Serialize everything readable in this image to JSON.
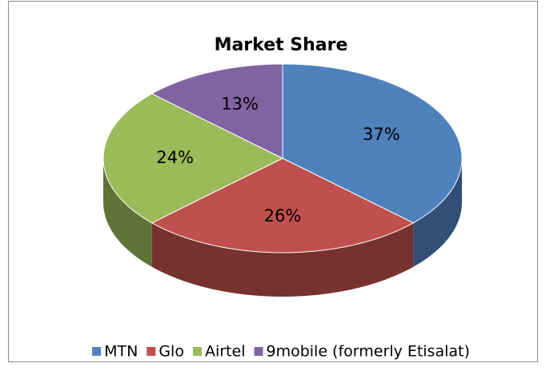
{
  "chart_data": {
    "type": "pie",
    "title": "Market Share",
    "categories": [
      "MTN",
      "Glo",
      "Airtel",
      "9mobile (formerly Etisalat)"
    ],
    "series": [
      {
        "name": "Market Share",
        "values": [
          37,
          26,
          24,
          13
        ],
        "value_labels": [
          "37%",
          "26%",
          "24%",
          "13%"
        ],
        "colors": [
          "#4f81bd",
          "#c0504d",
          "#9bbb59",
          "#8064a2"
        ]
      }
    ],
    "legend": "bottom"
  }
}
